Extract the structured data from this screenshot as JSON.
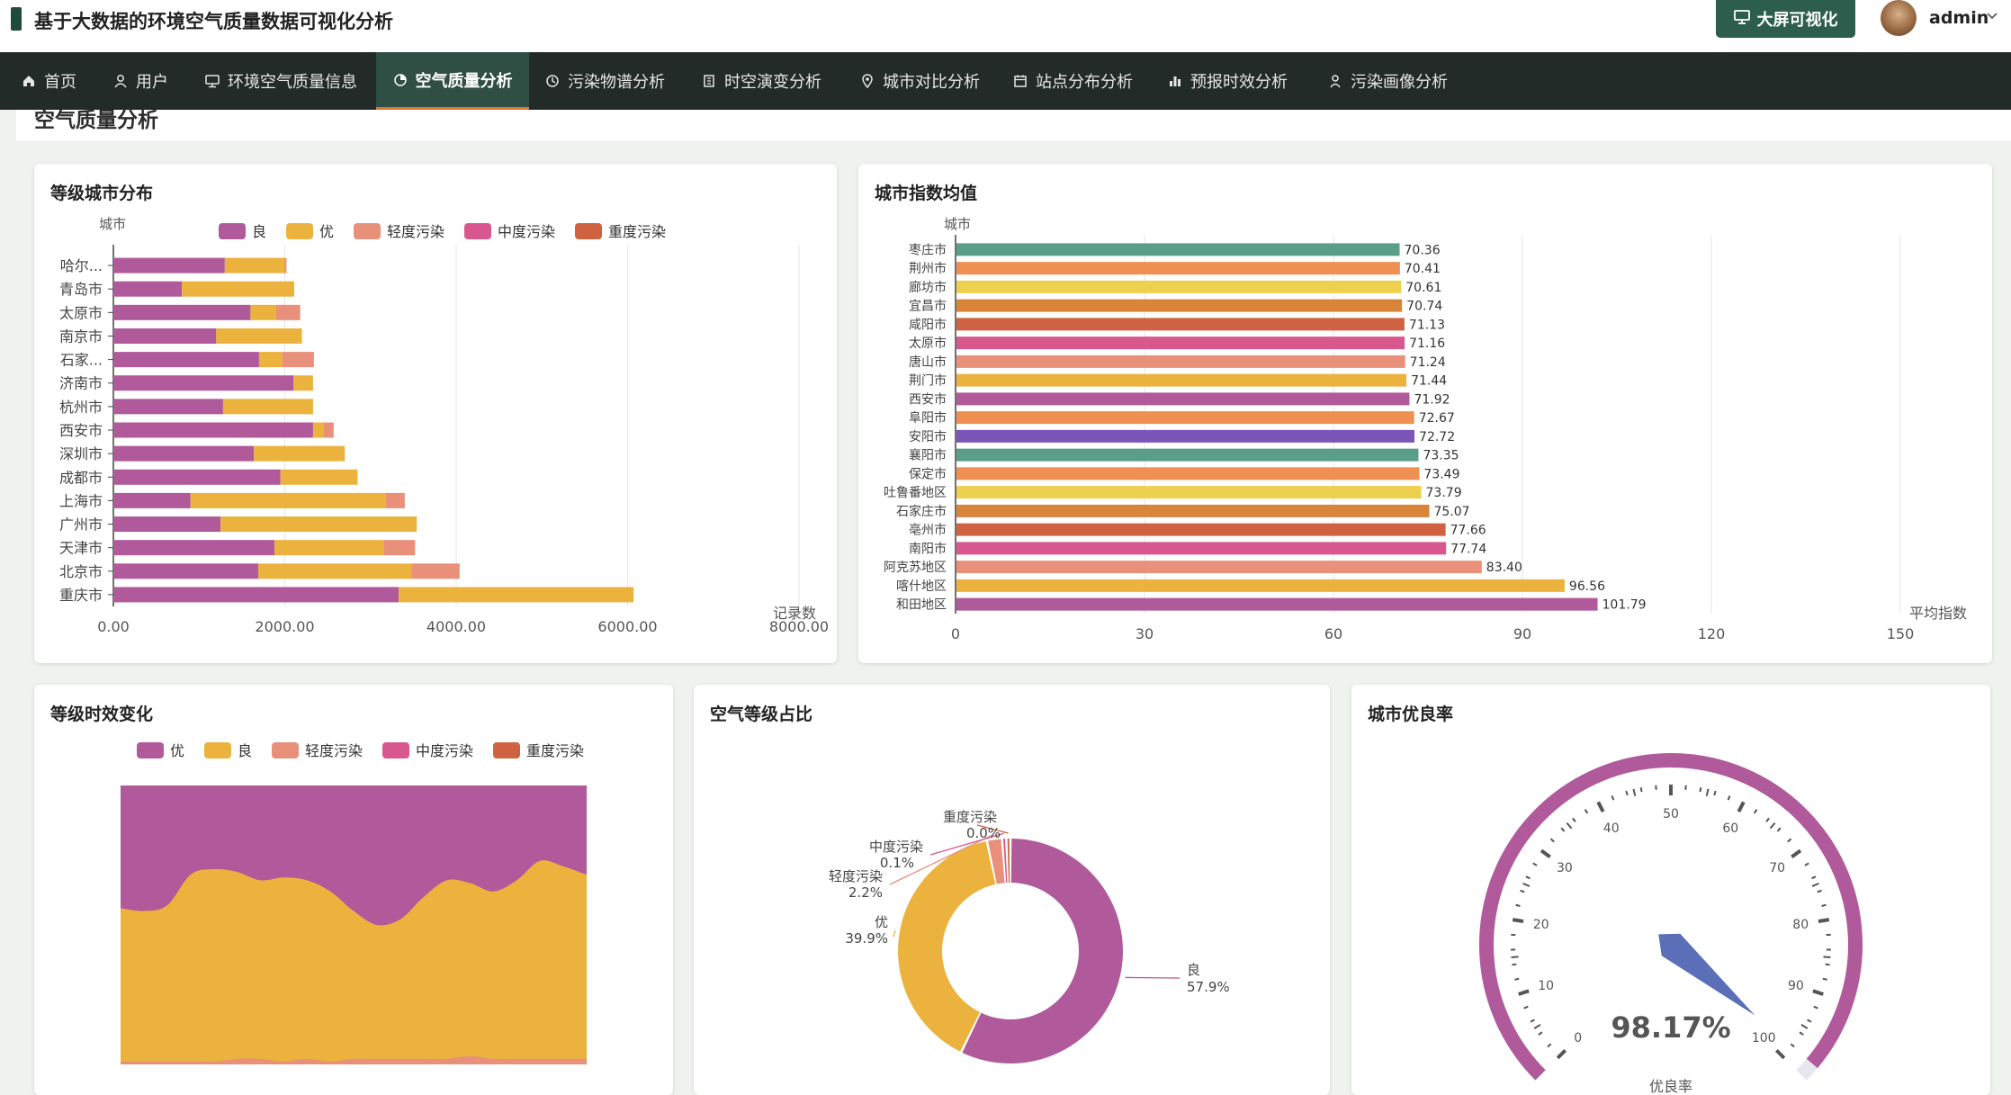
{
  "app": {
    "title": "基于大数据的环境空气质量数据可视化分析",
    "bigscreen_label": "大屏可视化",
    "user_name": "admin"
  },
  "nav": [
    {
      "label": "首页",
      "icon": "home-icon",
      "active": false
    },
    {
      "label": "用户",
      "icon": "user-icon",
      "active": false
    },
    {
      "label": "环境空气质量信息",
      "icon": "monitor-icon",
      "active": false
    },
    {
      "label": "空气质量分析",
      "icon": "pie-icon",
      "active": true
    },
    {
      "label": "污染物谱分析",
      "icon": "clock-icon",
      "active": false
    },
    {
      "label": "时空演变分析",
      "icon": "building-icon",
      "active": false
    },
    {
      "label": "城市对比分析",
      "icon": "location-icon",
      "active": false
    },
    {
      "label": "站点分布分析",
      "icon": "calendar-icon",
      "active": false
    },
    {
      "label": "预报时效分析",
      "icon": "bar-chart-icon",
      "active": false
    },
    {
      "label": "污染画像分析",
      "icon": "person-icon",
      "active": false
    }
  ],
  "section_title": "空气质量分析",
  "cards": {
    "grade_city": "等级城市分布",
    "city_index": "城市指数均值",
    "grade_time": "等级时效变化",
    "grade_share": "空气等级占比",
    "good_rate": "城市优良率"
  },
  "colors": {
    "liang": "#b05a9b",
    "you": "#ebb33e",
    "light": "#e8907a",
    "medium": "#d9578f",
    "heavy": "#cf6240",
    "teal": "#5a9e8a",
    "orange": "#ef8f52",
    "gauge_pointer": "#5b6fb8"
  },
  "chart_data": [
    {
      "type": "bar",
      "orientation": "horizontal",
      "stacked": true,
      "title": "等级城市分布",
      "ylabel": "城市",
      "xlabel": "记录数",
      "xlim": [
        0,
        8000
      ],
      "x_ticks": [
        "0.00",
        "2000.00",
        "4000.00",
        "6000.00",
        "8000.00"
      ],
      "legend_position": "top",
      "categories": [
        "哈尔...",
        "青岛市",
        "太原市",
        "南京市",
        "石家...",
        "济南市",
        "杭州市",
        "西安市",
        "深圳市",
        "成都市",
        "上海市",
        "广州市",
        "天津市",
        "北京市",
        "重庆市"
      ],
      "series": [
        {
          "name": "良",
          "color": "#b05a9b",
          "values": [
            1300,
            800,
            1600,
            1200,
            1700,
            2100,
            1280,
            2330,
            1640,
            1950,
            900,
            1250,
            1880,
            1690,
            3330
          ]
        },
        {
          "name": "优",
          "color": "#ebb33e",
          "values": [
            700,
            1310,
            300,
            1000,
            270,
            230,
            1050,
            120,
            1060,
            900,
            2280,
            2290,
            1280,
            1790,
            2740
          ]
        },
        {
          "name": "轻度污染",
          "color": "#e8907a",
          "values": [
            20,
            0,
            280,
            0,
            370,
            0,
            0,
            120,
            0,
            0,
            220,
            0,
            360,
            560,
            0
          ]
        },
        {
          "name": "中度污染",
          "color": "#d9578f",
          "values": [
            0,
            0,
            0,
            0,
            0,
            0,
            0,
            0,
            0,
            0,
            0,
            0,
            0,
            0,
            0
          ]
        },
        {
          "name": "重度污染",
          "color": "#cf6240",
          "values": [
            0,
            0,
            0,
            0,
            0,
            0,
            0,
            0,
            0,
            0,
            0,
            0,
            0,
            0,
            0
          ]
        }
      ]
    },
    {
      "type": "bar",
      "orientation": "horizontal",
      "title": "城市指数均值",
      "ylabel": "城市",
      "xlabel": "平均指数",
      "xlim": [
        0,
        150
      ],
      "x_ticks": [
        "0",
        "30",
        "60",
        "90",
        "120",
        "150"
      ],
      "categories": [
        "枣庄市",
        "荆州市",
        "廊坊市",
        "宜昌市",
        "咸阳市",
        "太原市",
        "唐山市",
        "荆门市",
        "西安市",
        "阜阳市",
        "安阳市",
        "襄阳市",
        "保定市",
        "吐鲁番地区",
        "石家庄市",
        "亳州市",
        "南阳市",
        "阿克苏地区",
        "喀什地区",
        "和田地区"
      ],
      "values": [
        70.36,
        70.41,
        70.61,
        70.74,
        71.13,
        71.16,
        71.24,
        71.44,
        71.92,
        72.67,
        72.72,
        73.35,
        73.49,
        73.79,
        75.07,
        77.66,
        77.74,
        83.4,
        96.56,
        101.79
      ],
      "value_labels": [
        "70.36",
        "70.41",
        "70.61",
        "70.74",
        "71.13",
        "71.16",
        "71.24",
        "71.44",
        "71.92",
        "72.67",
        "72.72",
        "73.35",
        "73.49",
        "73.79",
        "75.07",
        "77.66",
        "77.74",
        "83.40",
        "96.56",
        "101.79"
      ],
      "bar_colors": [
        "#5a9e8a",
        "#ef8f52",
        "#ecd04e",
        "#d8853a",
        "#cf6240",
        "#d9578f",
        "#e8907a",
        "#ebb33e",
        "#b05a9b",
        "#ef8f52",
        "#7b55b8",
        "#5a9e8a",
        "#ef8f52",
        "#ecd04e",
        "#d8853a",
        "#cf6240",
        "#d9578f",
        "#e8907a",
        "#ebb33e",
        "#b05a9b"
      ]
    },
    {
      "type": "area",
      "stacked": true,
      "normalized": true,
      "title": "等级时效变化",
      "legend_position": "top",
      "x": [
        0,
        1,
        2,
        3,
        4,
        5,
        6,
        7,
        8,
        9,
        10,
        11,
        12,
        13,
        14,
        15,
        16,
        17,
        18,
        19,
        20
      ],
      "series": [
        {
          "name": "优",
          "color": "#b05a9b",
          "values": [
            0.44,
            0.45,
            0.43,
            0.32,
            0.3,
            0.31,
            0.34,
            0.33,
            0.34,
            0.38,
            0.45,
            0.5,
            0.48,
            0.4,
            0.34,
            0.35,
            0.38,
            0.34,
            0.27,
            0.29,
            0.32
          ]
        },
        {
          "name": "良",
          "color": "#ebb33e",
          "values": [
            0.55,
            0.54,
            0.56,
            0.67,
            0.69,
            0.67,
            0.64,
            0.66,
            0.64,
            0.61,
            0.53,
            0.48,
            0.5,
            0.58,
            0.64,
            0.62,
            0.6,
            0.64,
            0.71,
            0.69,
            0.66
          ]
        },
        {
          "name": "轻度污染",
          "color": "#e8907a",
          "values": [
            0.01,
            0.01,
            0.01,
            0.01,
            0.01,
            0.02,
            0.02,
            0.01,
            0.02,
            0.01,
            0.02,
            0.02,
            0.02,
            0.02,
            0.02,
            0.03,
            0.02,
            0.02,
            0.02,
            0.02,
            0.02
          ]
        },
        {
          "name": "中度污染",
          "color": "#d9578f",
          "values": [
            0,
            0,
            0,
            0,
            0,
            0,
            0,
            0,
            0,
            0,
            0,
            0,
            0,
            0,
            0,
            0,
            0,
            0,
            0,
            0,
            0
          ]
        },
        {
          "name": "重度污染",
          "color": "#cf6240",
          "values": [
            0,
            0,
            0,
            0,
            0,
            0,
            0,
            0,
            0,
            0,
            0,
            0,
            0,
            0,
            0,
            0,
            0,
            0,
            0,
            0,
            0
          ]
        }
      ]
    },
    {
      "type": "pie",
      "donut": true,
      "title": "空气等级占比",
      "slices": [
        {
          "name": "良",
          "value": 57.9,
          "label": "57.9%",
          "color": "#b05a9b"
        },
        {
          "name": "优",
          "value": 39.9,
          "label": "39.9%",
          "color": "#ebb33e"
        },
        {
          "name": "轻度污染",
          "value": 2.2,
          "label": "2.2%",
          "color": "#e8907a"
        },
        {
          "name": "中度污染",
          "value": 0.1,
          "label": "0.1%",
          "color": "#d9578f"
        },
        {
          "name": "重度污染",
          "value": 0.0,
          "label": "0.0%",
          "color": "#cf6240"
        }
      ]
    },
    {
      "type": "gauge",
      "title": "城市优良率",
      "value": 98.17,
      "value_label": "98.17%",
      "unit_label": "优良率",
      "min": 0,
      "max": 100,
      "ticks": [
        "0",
        "10",
        "20",
        "30",
        "40",
        "50",
        "60",
        "70",
        "80",
        "90",
        "100"
      ]
    }
  ]
}
